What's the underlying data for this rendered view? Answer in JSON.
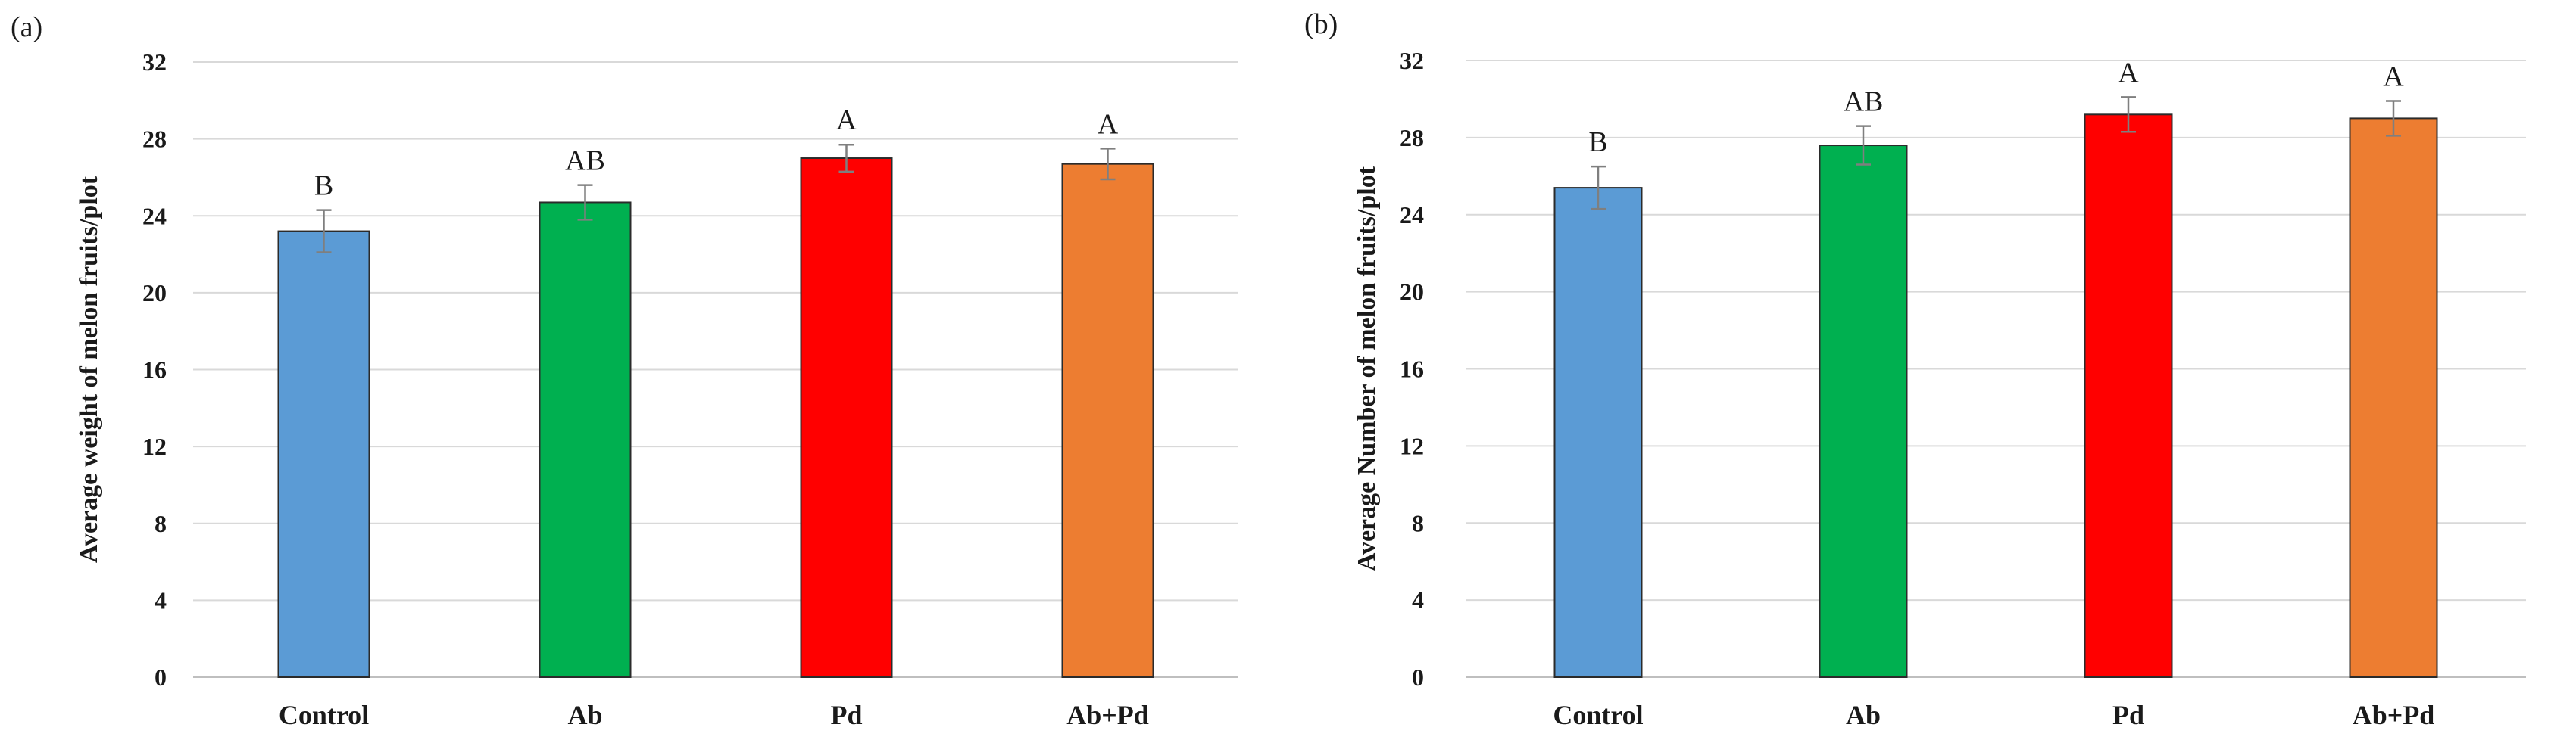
{
  "chart_data": [
    {
      "panel": "(a)",
      "type": "bar",
      "title": "",
      "xlabel": "",
      "ylabel": "Average weight of melon fruits/plot",
      "ylim": [
        0,
        32
      ],
      "yticks": [
        0,
        4,
        8,
        12,
        16,
        20,
        24,
        28,
        32
      ],
      "yticklabels": [
        "0",
        "4",
        "8",
        "12",
        "16",
        "20",
        "24",
        "28",
        "32"
      ],
      "categories": [
        "Control",
        "Ab",
        "Pd",
        "Ab+Pd"
      ],
      "values": [
        23.2,
        24.7,
        27.0,
        26.7
      ],
      "errors": [
        1.1,
        0.9,
        0.7,
        0.8
      ],
      "labels": [
        "B",
        "AB",
        "A",
        "A"
      ],
      "colors": [
        "#5B9BD5",
        "#00B050",
        "#FF0000",
        "#ED7D31"
      ],
      "grid": true
    },
    {
      "panel": "(b)",
      "type": "bar",
      "title": "",
      "xlabel": "",
      "ylabel": "Average Number of  melon fruits/plot",
      "ylim": [
        0,
        32
      ],
      "yticks": [
        0,
        4,
        8,
        12,
        16,
        20,
        24,
        28,
        32
      ],
      "yticklabels": [
        "0",
        "4",
        "8",
        "12",
        "16",
        "20",
        "24",
        "28",
        "32"
      ],
      "categories": [
        "Control",
        "Ab",
        "Pd",
        "Ab+Pd"
      ],
      "values": [
        25.4,
        27.6,
        29.2,
        29.0
      ],
      "errors": [
        1.1,
        1.0,
        0.9,
        0.9
      ],
      "labels": [
        "B",
        "AB",
        "A",
        "A"
      ],
      "colors": [
        "#5B9BD5",
        "#00B050",
        "#FF0000",
        "#ED7D31"
      ],
      "grid": true
    }
  ]
}
